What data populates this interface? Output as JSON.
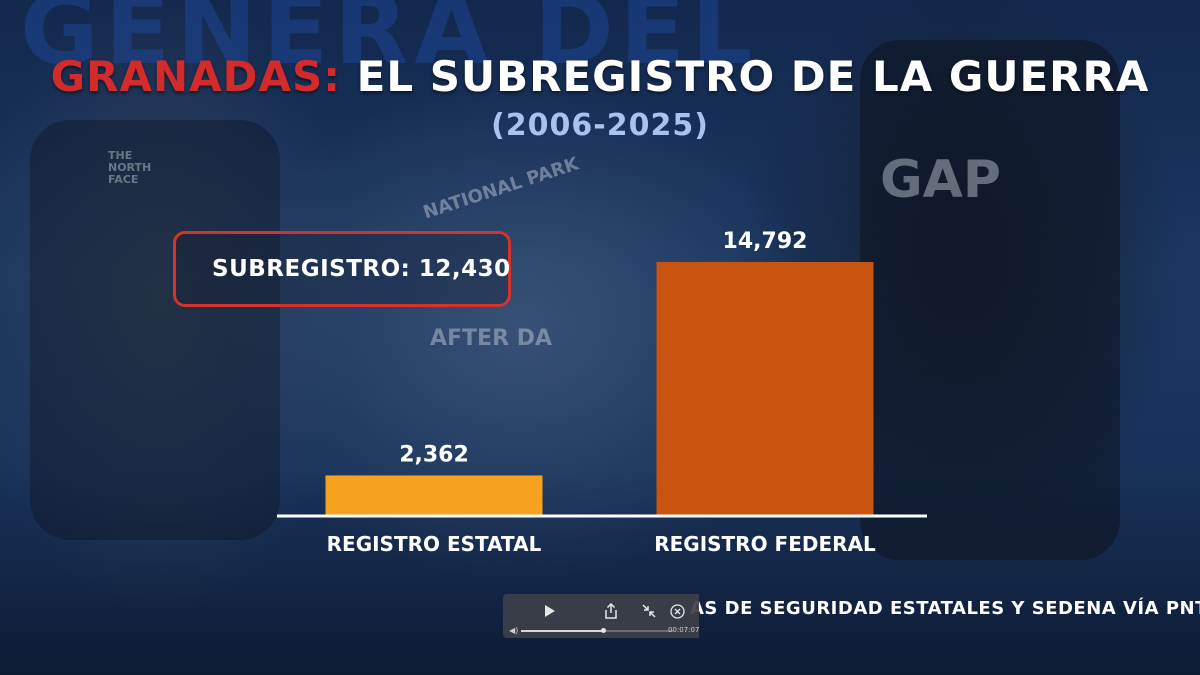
{
  "background": {
    "word": "GENERA DEL",
    "shirt_gap": "GAP",
    "shirt_park": "NATIONAL PARK",
    "shirt_after": "AFTER DA",
    "shirt_northface": "THE NORTH FACE"
  },
  "header": {
    "title_accent": "GRANADAS:",
    "title_rest": "EL SUBREGISTRO DE LA GUERRA",
    "subtitle": "(2006-2025)",
    "accent_color": "#d32b2b"
  },
  "badge": {
    "icon": "grenade-icon",
    "text": "SUBREGISTRO: 12,430"
  },
  "chart_data": {
    "type": "bar",
    "categories": [
      "REGISTRO ESTATAL",
      "REGISTRO FEDERAL"
    ],
    "values": [
      2362,
      14792
    ],
    "value_labels": [
      "2,362",
      "14,792"
    ],
    "colors": [
      "#f5a21f",
      "#c95412"
    ],
    "title": "",
    "xlabel": "",
    "ylabel": "",
    "ylim": [
      0,
      14792
    ],
    "grid": false,
    "legend": "none"
  },
  "source": {
    "text": "AS DE SEGURIDAD ESTATALES Y SEDENA VÍA PNT"
  },
  "player": {
    "timecode": "00:07:07",
    "progress": 0.54,
    "icons": [
      "play-icon",
      "share-icon",
      "exit-fullscreen-icon",
      "close-icon",
      "volume-icon"
    ]
  }
}
